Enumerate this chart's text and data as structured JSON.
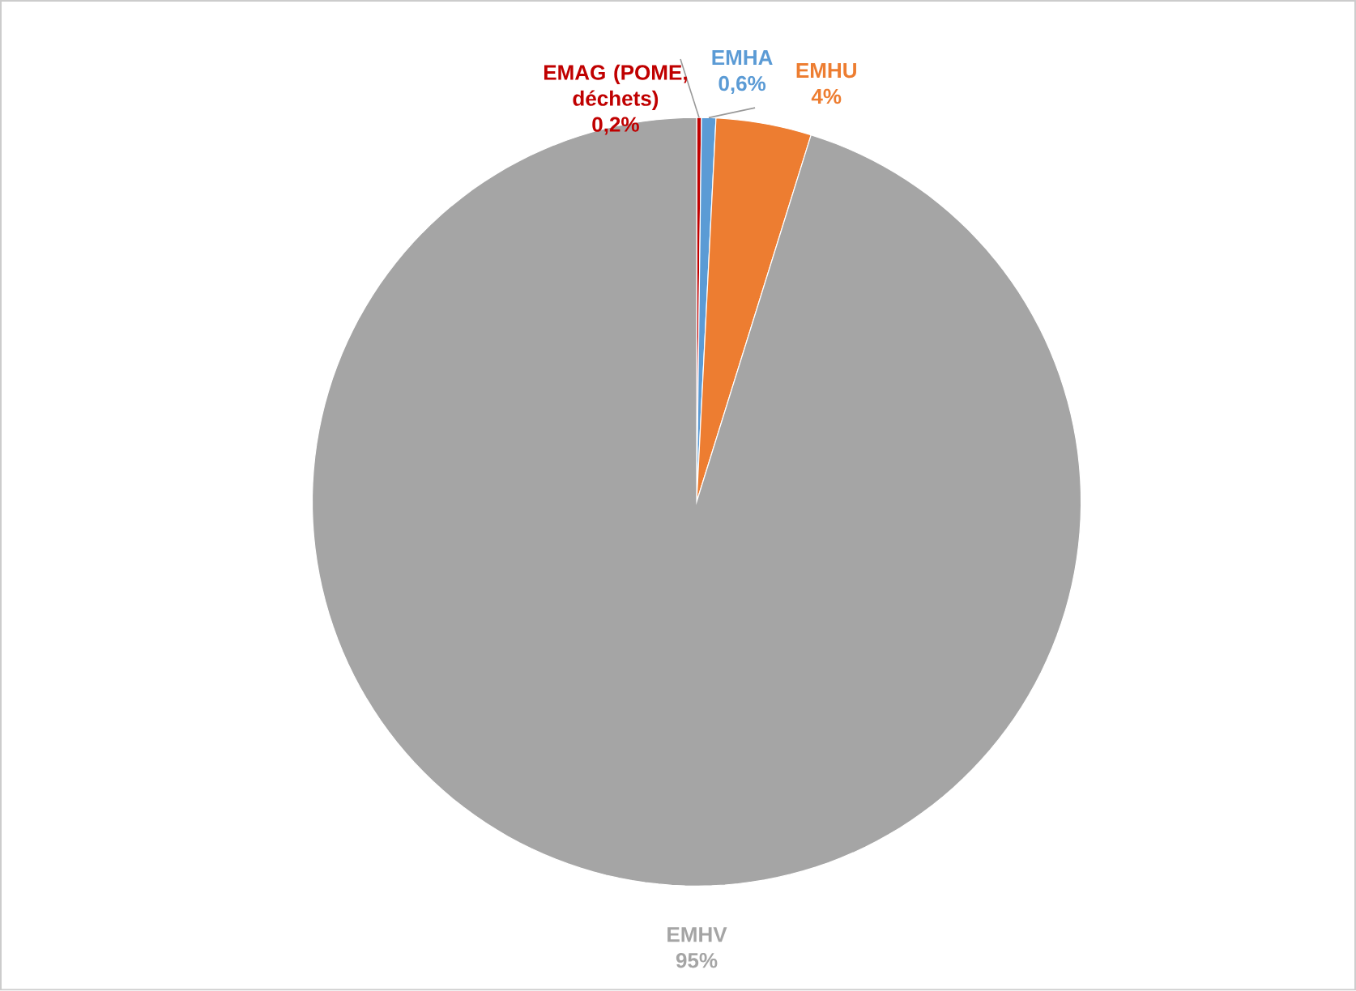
{
  "chart_data": {
    "type": "pie",
    "categories": [
      "EMAG (POME, déchets)",
      "EMHA",
      "EMHU",
      "EMHV"
    ],
    "values": [
      0.2,
      0.6,
      4,
      95
    ],
    "value_labels": [
      "0,2%",
      "0,6%",
      "4%",
      "95%"
    ],
    "colors": [
      "#c00000",
      "#5b9bd5",
      "#ed7d31",
      "#a5a5a5"
    ]
  }
}
